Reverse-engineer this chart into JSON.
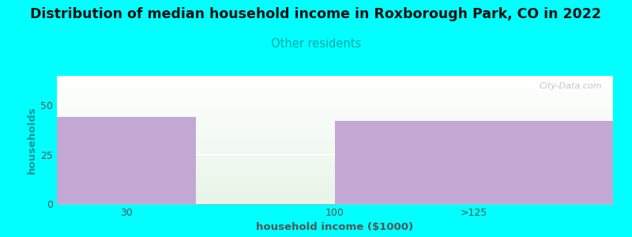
{
  "title": "Distribution of median household income in Roxborough Park, CO in 2022",
  "subtitle": "Other residents",
  "xlabel": "household income ($1000)",
  "ylabel": "households",
  "background_color": "#00FFFF",
  "bar_color": "#c4a8d4",
  "title_fontsize": 12.5,
  "subtitle_fontsize": 10.5,
  "subtitle_color": "#00AAAA",
  "axis_label_fontsize": 9.5,
  "tick_fontsize": 9,
  "ylabel_color": "#009999",
  "yticks": [
    0,
    25,
    50
  ],
  "ylim": [
    0,
    65
  ],
  "xlim": [
    0,
    4
  ],
  "bars": [
    {
      "x_start": 0,
      "x_end": 1,
      "height": 44
    },
    {
      "x_start": 2,
      "x_end": 4,
      "height": 42
    }
  ],
  "xtick_positions": [
    0.5,
    2.0,
    3.0
  ],
  "xtick_labels": [
    "30",
    "100",
    ">125"
  ],
  "watermark": "City-Data.com"
}
